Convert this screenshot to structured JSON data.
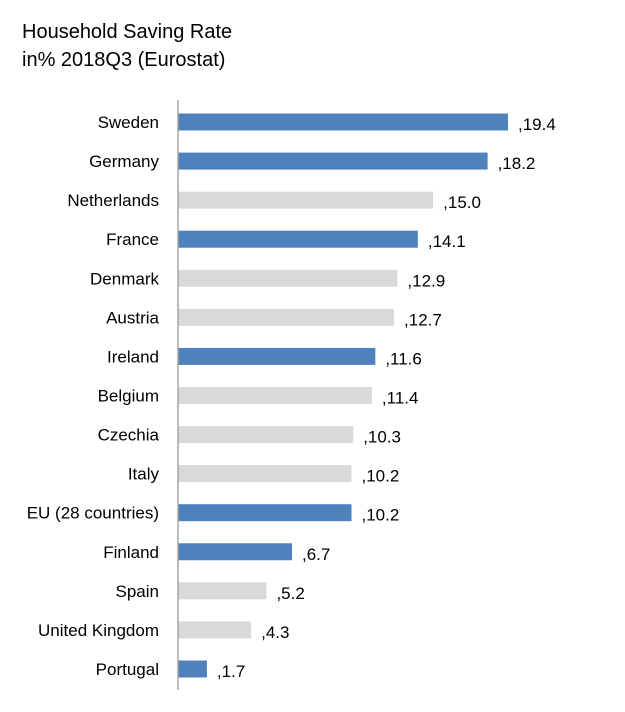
{
  "chart_data": {
    "type": "bar",
    "orientation": "horizontal",
    "title_lines": [
      "Household Saving Rate",
      "in% 2018Q3 (Eurostat)"
    ],
    "categories": [
      "Sweden",
      "Germany",
      "Netherlands",
      "France",
      "Denmark",
      "Austria",
      "Ireland",
      "Belgium",
      "Czechia",
      "Italy",
      "EU (28 countries)",
      "Finland",
      "Spain",
      "United Kingdom",
      "Portugal"
    ],
    "values": [
      19.4,
      18.2,
      15.0,
      14.1,
      12.9,
      12.7,
      11.6,
      11.4,
      10.3,
      10.2,
      10.2,
      6.7,
      5.2,
      4.3,
      1.7
    ],
    "value_labels": [
      ",19.4",
      ",18.2",
      ",15.0",
      ",14.1",
      ",12.9",
      ",12.7",
      ",11.6",
      ",11.4",
      ",10.3",
      ",10.2",
      ",10.2",
      ",6.7",
      ",5.2",
      ",4.3",
      ",1.7"
    ],
    "highlighted": [
      true,
      true,
      false,
      true,
      false,
      false,
      true,
      false,
      false,
      false,
      true,
      true,
      false,
      false,
      true
    ],
    "colors": {
      "highlight": "#4f81bd",
      "default": "#d9d9d9",
      "axis": "#a6a6a6"
    },
    "xlim": [
      0,
      20
    ],
    "grid": false,
    "legend": "none"
  }
}
